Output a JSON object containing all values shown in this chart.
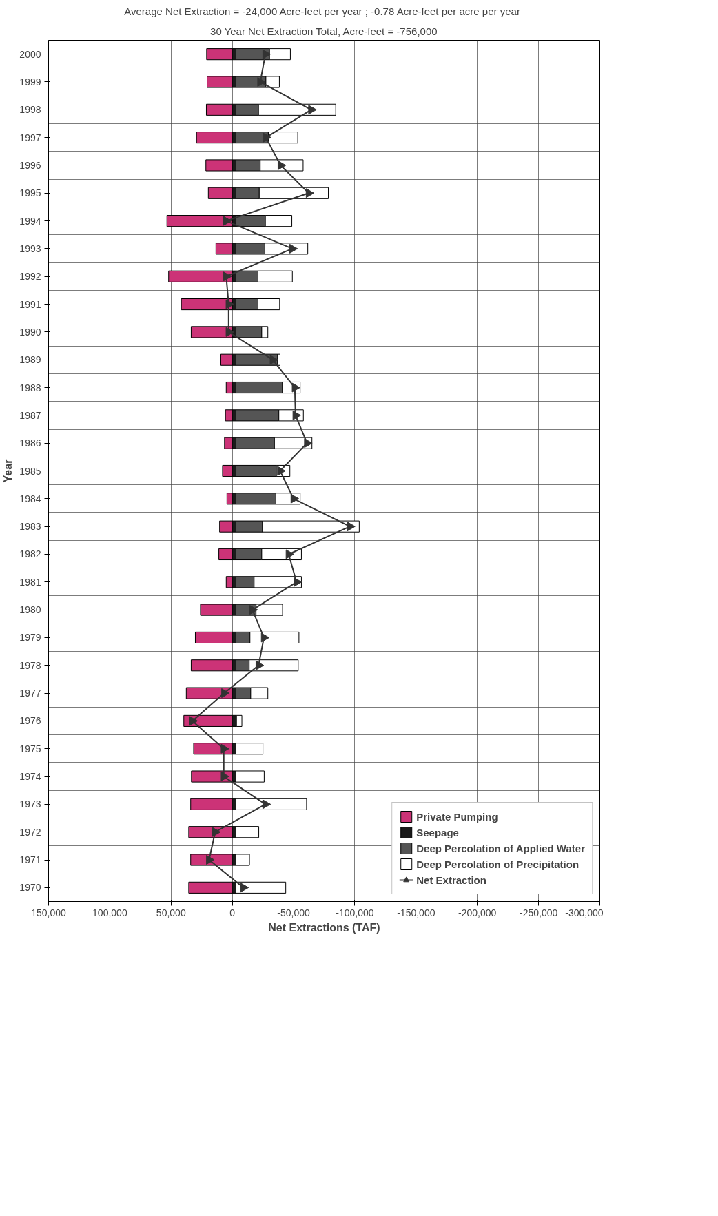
{
  "chart_data": {
    "type": "bar",
    "orientation": "horizontal",
    "stacked": true,
    "annotations": [
      "30 Year Net Extraction Total, Acre-feet = -756,000",
      "Average Net Extraction = -24,000 Acre-feet per year ;  -0.78 Acre-feet per acre per year"
    ],
    "xlabel": "Net Extractions (TAF)",
    "ylabel": "Year",
    "categories": [
      "2000",
      "1999",
      "1998",
      "1997",
      "1996",
      "1995",
      "1994",
      "1993",
      "1992",
      "1991",
      "1990",
      "1989",
      "1988",
      "1987",
      "1986",
      "1985",
      "1984",
      "1983",
      "1982",
      "1981",
      "1980",
      "1979",
      "1978",
      "1977",
      "1976",
      "1975",
      "1974",
      "1973",
      "1972",
      "1971",
      "1970"
    ],
    "series": [
      {
        "name": "Private Pumping",
        "color": "#cc3377",
        "values": [
          21000,
          20600,
          21200,
          29200,
          21600,
          19600,
          53400,
          13400,
          52000,
          41600,
          33600,
          9400,
          5000,
          5600,
          6400,
          8000,
          4400,
          10400,
          11000,
          5000,
          26000,
          30200,
          33600,
          37600,
          39600,
          31600,
          33400,
          34000,
          35600,
          34000,
          35600
        ]
      },
      {
        "name": "Seepage",
        "color": "#1a1a1a",
        "values": [
          -3000,
          -3000,
          -3000,
          -3000,
          -3000,
          -3000,
          -3000,
          -3000,
          -3000,
          -3000,
          -3000,
          -3000,
          -3000,
          -3000,
          -3000,
          -3000,
          -3000,
          -3000,
          -3000,
          -3000,
          -3000,
          -3000,
          -3000,
          -3000,
          -3000,
          -3000,
          -3000,
          -3000,
          -3000,
          -3000,
          -3000
        ]
      },
      {
        "name": "Deep Percolation of Applied Water",
        "color": "#555555",
        "values": [
          -27400,
          -24400,
          -18400,
          -26400,
          -19800,
          -19000,
          -24000,
          -23600,
          -18000,
          -18000,
          -21000,
          -34000,
          -38000,
          -35000,
          -31400,
          -33000,
          -32600,
          -21600,
          -21000,
          -14800,
          -16400,
          -11400,
          -10800,
          -12000,
          -400,
          null,
          null,
          null,
          null,
          null,
          null
        ]
      },
      {
        "name": "Deep Percolation of Precipitation",
        "color": "#ffffff",
        "values": [
          -17000,
          -11000,
          -63000,
          -24000,
          -35000,
          -56400,
          -21600,
          -35000,
          -28000,
          -17600,
          -5000,
          -2000,
          -14400,
          -20000,
          -30600,
          -11000,
          -19800,
          -79000,
          -32400,
          -38600,
          -21600,
          -40000,
          -40000,
          -14000,
          -4400,
          -22000,
          -23000,
          -57600,
          -18600,
          -11000,
          -40600
        ]
      },
      {
        "name": "Net Extraction",
        "type": "line",
        "color": "#333333",
        "marker": "triangle",
        "values": [
          -27000,
          -22800,
          -64400,
          -27400,
          -39400,
          -62400,
          5000,
          -49000,
          5000,
          3000,
          3000,
          -33000,
          -51000,
          -51600,
          -61000,
          -39000,
          -50000,
          -96000,
          -46000,
          -52400,
          -16400,
          -25800,
          -21400,
          6600,
          32600,
          7000,
          7000,
          -27000,
          14000,
          19000,
          -9000
        ]
      }
    ],
    "xlim": [
      150000,
      -300000
    ],
    "xticks": [
      {
        "value": 150000,
        "label": "150,000"
      },
      {
        "value": 100000,
        "label": "100,000"
      },
      {
        "value": 50000,
        "label": "50,000"
      },
      {
        "value": 0,
        "label": "0"
      },
      {
        "value": -50000,
        "label": "-50,000"
      },
      {
        "value": -100000,
        "label": "-100,000"
      },
      {
        "value": -150000,
        "label": "-150,000"
      },
      {
        "value": -200000,
        "label": "-200,000"
      },
      {
        "value": -250000,
        "label": "-250,000"
      },
      {
        "value": -300000,
        "label": "-300,000"
      }
    ],
    "grid": true,
    "legend": "bottom right"
  }
}
